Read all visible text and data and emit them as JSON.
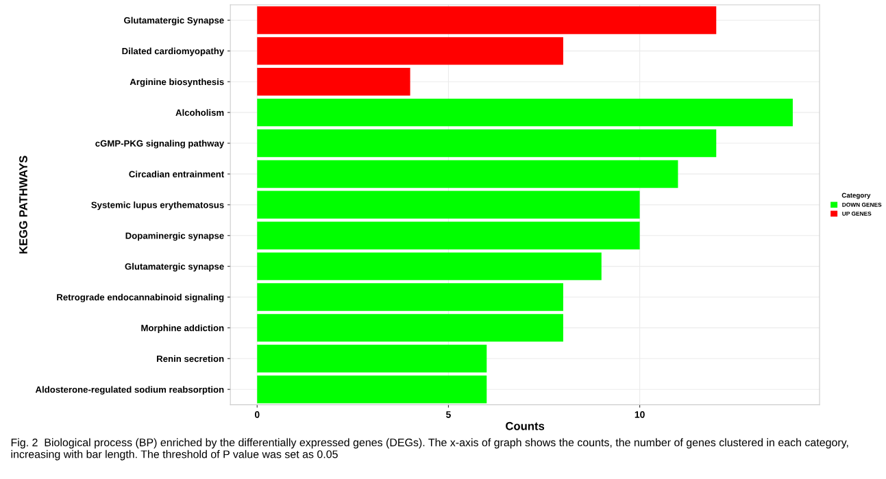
{
  "chart_data": {
    "type": "bar",
    "orientation": "horizontal",
    "xlabel": "Counts",
    "ylabel": "KEGG PATHWAYS",
    "legend_title": "Category",
    "legend": "right",
    "grid": true,
    "categories": [
      "Glutamatergic Synapse",
      "Dilated cardiomyopathy",
      "Arginine biosynthesis",
      "Alcoholism",
      "cGMP-PKG signaling pathway",
      "Circadian entrainment",
      "Systemic lupus erythematosus",
      "Dopaminergic synapse",
      "Glutamatergic synapse",
      "Retrograde endocannabinoid signaling",
      "Morphine addiction",
      "Renin secretion",
      "Aldosterone-regulated sodium reabsorption"
    ],
    "series": [
      {
        "name": "DOWN GENES",
        "color": "#00ff00",
        "values": [
          null,
          null,
          null,
          14,
          12,
          11,
          10,
          10,
          9,
          8,
          8,
          6,
          6
        ]
      },
      {
        "name": "UP GENES",
        "color": "#ff0000",
        "values": [
          12,
          8,
          4,
          null,
          null,
          null,
          null,
          null,
          null,
          null,
          null,
          null,
          null
        ]
      }
    ],
    "xlim": [
      -0.7,
      14.7
    ],
    "xticks": [
      0,
      5,
      10
    ],
    "annotations": [
      "Fig. 2  Biological process (BP) enriched by the differentially expressed genes (DEGs). The x-axis of graph shows the counts, the number of genes clustered in each category, increasing with bar length. The threshold of P value was set as 0.05"
    ]
  }
}
